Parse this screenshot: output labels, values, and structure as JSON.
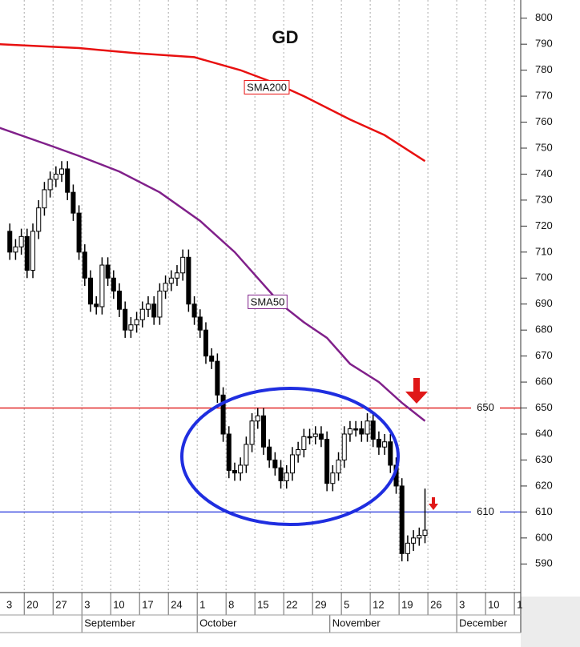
{
  "chart_data": {
    "type": "candlestick",
    "title": "GD",
    "title_color": "#1a8a1a",
    "open": [
      718,
      710,
      712,
      716,
      703,
      718,
      727,
      734,
      738,
      740,
      742,
      733,
      725,
      710,
      700,
      690,
      689,
      705,
      700,
      695,
      688,
      680,
      682,
      684,
      688,
      690,
      685,
      695,
      698,
      700,
      702,
      708,
      690,
      685,
      680,
      670,
      668,
      655,
      640,
      626,
      625,
      628,
      636,
      645,
      647,
      635,
      630,
      627,
      622,
      625,
      632,
      634,
      639,
      639,
      640,
      638,
      621,
      625,
      630,
      640,
      642,
      642,
      640,
      645,
      638,
      635,
      637,
      628,
      620,
      594,
      598,
      600,
      601
    ],
    "high": [
      721,
      715,
      719,
      719,
      721,
      730,
      737,
      741,
      743,
      745,
      745,
      736,
      728,
      713,
      703,
      693,
      708,
      708,
      703,
      698,
      691,
      685,
      687,
      691,
      693,
      693,
      698,
      701,
      703,
      705,
      711,
      711,
      693,
      688,
      683,
      673,
      671,
      658,
      643,
      629,
      631,
      639,
      648,
      650,
      650,
      638,
      633,
      630,
      628,
      635,
      637,
      642,
      642,
      643,
      643,
      641,
      628,
      633,
      643,
      645,
      645,
      645,
      648,
      648,
      641,
      640,
      640,
      631,
      623,
      601,
      603,
      604,
      619
    ],
    "low": [
      707,
      707,
      709,
      700,
      700,
      715,
      724,
      731,
      735,
      737,
      730,
      722,
      707,
      697,
      687,
      686,
      686,
      697,
      692,
      685,
      677,
      677,
      679,
      681,
      685,
      682,
      682,
      692,
      695,
      697,
      699,
      687,
      682,
      677,
      667,
      665,
      652,
      637,
      623,
      622,
      622,
      625,
      633,
      642,
      632,
      627,
      624,
      619,
      619,
      622,
      629,
      631,
      636,
      636,
      635,
      618,
      618,
      622,
      627,
      637,
      639,
      637,
      637,
      635,
      632,
      632,
      625,
      617,
      591,
      591,
      595,
      597,
      598
    ],
    "close": [
      710,
      712,
      716,
      703,
      718,
      727,
      734,
      738,
      740,
      742,
      733,
      725,
      710,
      700,
      690,
      689,
      705,
      700,
      695,
      688,
      680,
      682,
      684,
      688,
      690,
      685,
      695,
      698,
      700,
      702,
      708,
      690,
      685,
      680,
      670,
      668,
      655,
      640,
      626,
      625,
      628,
      636,
      645,
      647,
      635,
      630,
      627,
      622,
      625,
      632,
      634,
      639,
      639,
      640,
      638,
      621,
      625,
      630,
      640,
      642,
      642,
      640,
      645,
      638,
      635,
      637,
      628,
      620,
      594,
      598,
      600,
      601,
      603
    ],
    "series": [
      {
        "name": "SMA200",
        "color": "#e81010",
        "x": [
          -2,
          12,
          22,
          32,
          40,
          46,
          51,
          59,
          65,
          72
        ],
        "values": [
          790,
          788.5,
          786.5,
          785,
          780,
          775,
          770,
          761,
          755,
          745
        ]
      },
      {
        "name": "SMA50",
        "color": "#80208a",
        "x": [
          -2,
          7,
          12,
          19,
          26,
          33,
          39,
          43,
          47,
          51,
          55,
          59,
          64,
          68,
          72
        ],
        "values": [
          758,
          751,
          747,
          741,
          733,
          722,
          710,
          700,
          690,
          683,
          677,
          667,
          660,
          652,
          645
        ]
      }
    ],
    "hlines": [
      {
        "value": 650,
        "color": "#e01818"
      },
      {
        "value": 610,
        "color": "#2233dd"
      }
    ],
    "xlim": [
      -1.7,
      88.6
    ],
    "ylim": [
      579,
      807
    ],
    "yticks": [
      590,
      600,
      610,
      620,
      630,
      640,
      650,
      660,
      670,
      680,
      690,
      700,
      710,
      720,
      730,
      740,
      750,
      760,
      770,
      780,
      790,
      800
    ],
    "xticks": [
      {
        "value": -2,
        "label": "3"
      },
      {
        "value": 3,
        "label": "20"
      },
      {
        "value": 8,
        "label": "27"
      },
      {
        "value": 13,
        "label": "3"
      },
      {
        "value": 18,
        "label": "10"
      },
      {
        "value": 23,
        "label": "17"
      },
      {
        "value": 28,
        "label": "24"
      },
      {
        "value": 33,
        "label": "1"
      },
      {
        "value": 38,
        "label": "8"
      },
      {
        "value": 43,
        "label": "15"
      },
      {
        "value": 48,
        "label": "22"
      },
      {
        "value": 53,
        "label": "29"
      },
      {
        "value": 58,
        "label": "5"
      },
      {
        "value": 63,
        "label": "12"
      },
      {
        "value": 68,
        "label": "19"
      },
      {
        "value": 73,
        "label": "26"
      },
      {
        "value": 78,
        "label": "3"
      },
      {
        "value": 83,
        "label": "10"
      },
      {
        "value": 88,
        "label": "1"
      }
    ],
    "month_ticks": [
      {
        "value": 13,
        "label": "September"
      },
      {
        "value": 33,
        "label": "October"
      },
      {
        "value": 56,
        "label": "November"
      },
      {
        "value": 78,
        "label": "December"
      }
    ],
    "grid": true
  }
}
